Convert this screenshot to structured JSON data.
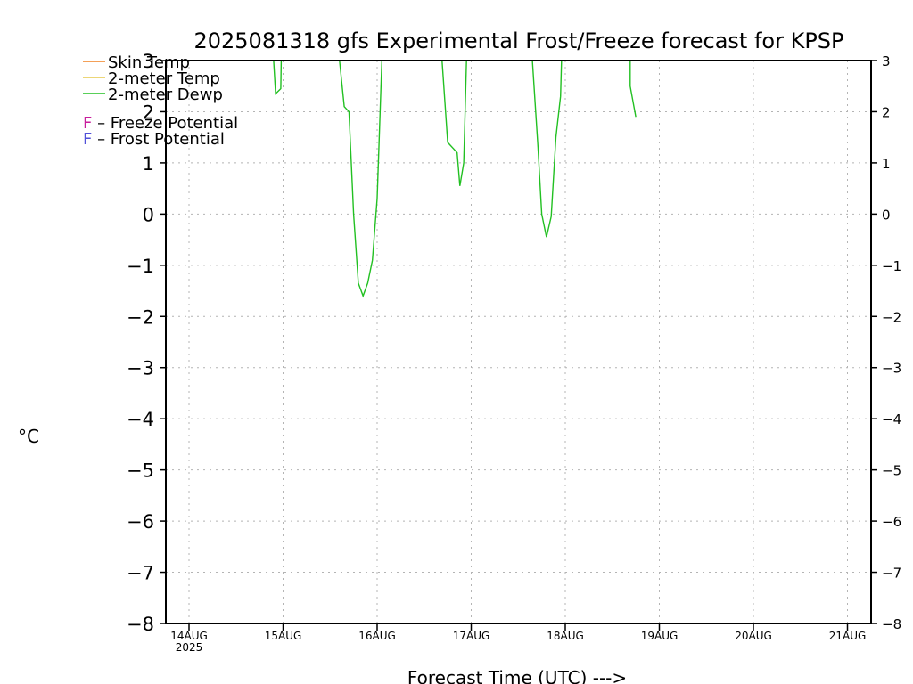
{
  "chart_data": {
    "type": "line",
    "title": "2025081318 gfs Experimental Frost/Freeze forecast for KPSP",
    "xlabel": "Forecast Time (UTC) --->",
    "ylabel": "°C",
    "ylim": [
      -8,
      3
    ],
    "xlim": [
      -0.25,
      7.25
    ],
    "yticks": [
      3,
      2,
      1,
      0,
      -1,
      -2,
      -3,
      -4,
      -5,
      -6,
      -7,
      -8
    ],
    "ytick_labels": [
      "3",
      "2",
      "1",
      "0",
      "−1",
      "−2",
      "−3",
      "−4",
      "−5",
      "−6",
      "−7",
      "−8"
    ],
    "x_tick_labels": [
      "14AUG",
      "15AUG",
      "16AUG",
      "17AUG",
      "18AUG",
      "19AUG",
      "20AUG",
      "21AUG"
    ],
    "x_tick_year": "2025",
    "grid": true,
    "legend_position": "top-left",
    "legend": [
      {
        "label": "Skin Temp",
        "color": "#f08020"
      },
      {
        "label": "2-meter Temp",
        "color": "#e6c84a"
      },
      {
        "label": "2-meter Dewp",
        "color": "#22c022"
      }
    ],
    "potential_legend": [
      {
        "letter": "F",
        "text": " – Freeze Potential",
        "color": "#c81c9c"
      },
      {
        "letter": "F",
        "text": " – Frost Potential",
        "color": "#5050d8"
      }
    ],
    "series": [
      {
        "name": "2-meter Dewp",
        "color": "#22c022",
        "segments": [
          [
            [
              0.9,
              3.0
            ],
            [
              0.92,
              2.35
            ],
            [
              0.975,
              2.45
            ],
            [
              0.98,
              3.0
            ]
          ],
          [
            [
              1.6,
              3.0
            ],
            [
              1.65,
              2.1
            ],
            [
              1.7,
              2.0
            ],
            [
              1.75,
              0.0
            ],
            [
              1.8,
              -1.35
            ],
            [
              1.85,
              -1.6
            ],
            [
              1.9,
              -1.35
            ],
            [
              1.95,
              -0.9
            ],
            [
              2.0,
              0.3
            ],
            [
              2.05,
              3.0
            ]
          ],
          [
            [
              2.69,
              3.0
            ],
            [
              2.75,
              1.4
            ],
            [
              2.85,
              1.2
            ],
            [
              2.88,
              0.55
            ],
            [
              2.92,
              1.0
            ],
            [
              2.95,
              3.0
            ]
          ],
          [
            [
              3.65,
              3.0
            ],
            [
              3.71,
              1.3
            ],
            [
              3.75,
              0.0
            ],
            [
              3.8,
              -0.45
            ],
            [
              3.85,
              -0.05
            ],
            [
              3.9,
              1.5
            ],
            [
              3.95,
              2.3
            ],
            [
              3.96,
              3.0
            ]
          ],
          [
            [
              4.69,
              3.0
            ],
            [
              4.69,
              2.5
            ],
            [
              4.75,
              1.9
            ]
          ]
        ]
      }
    ]
  }
}
